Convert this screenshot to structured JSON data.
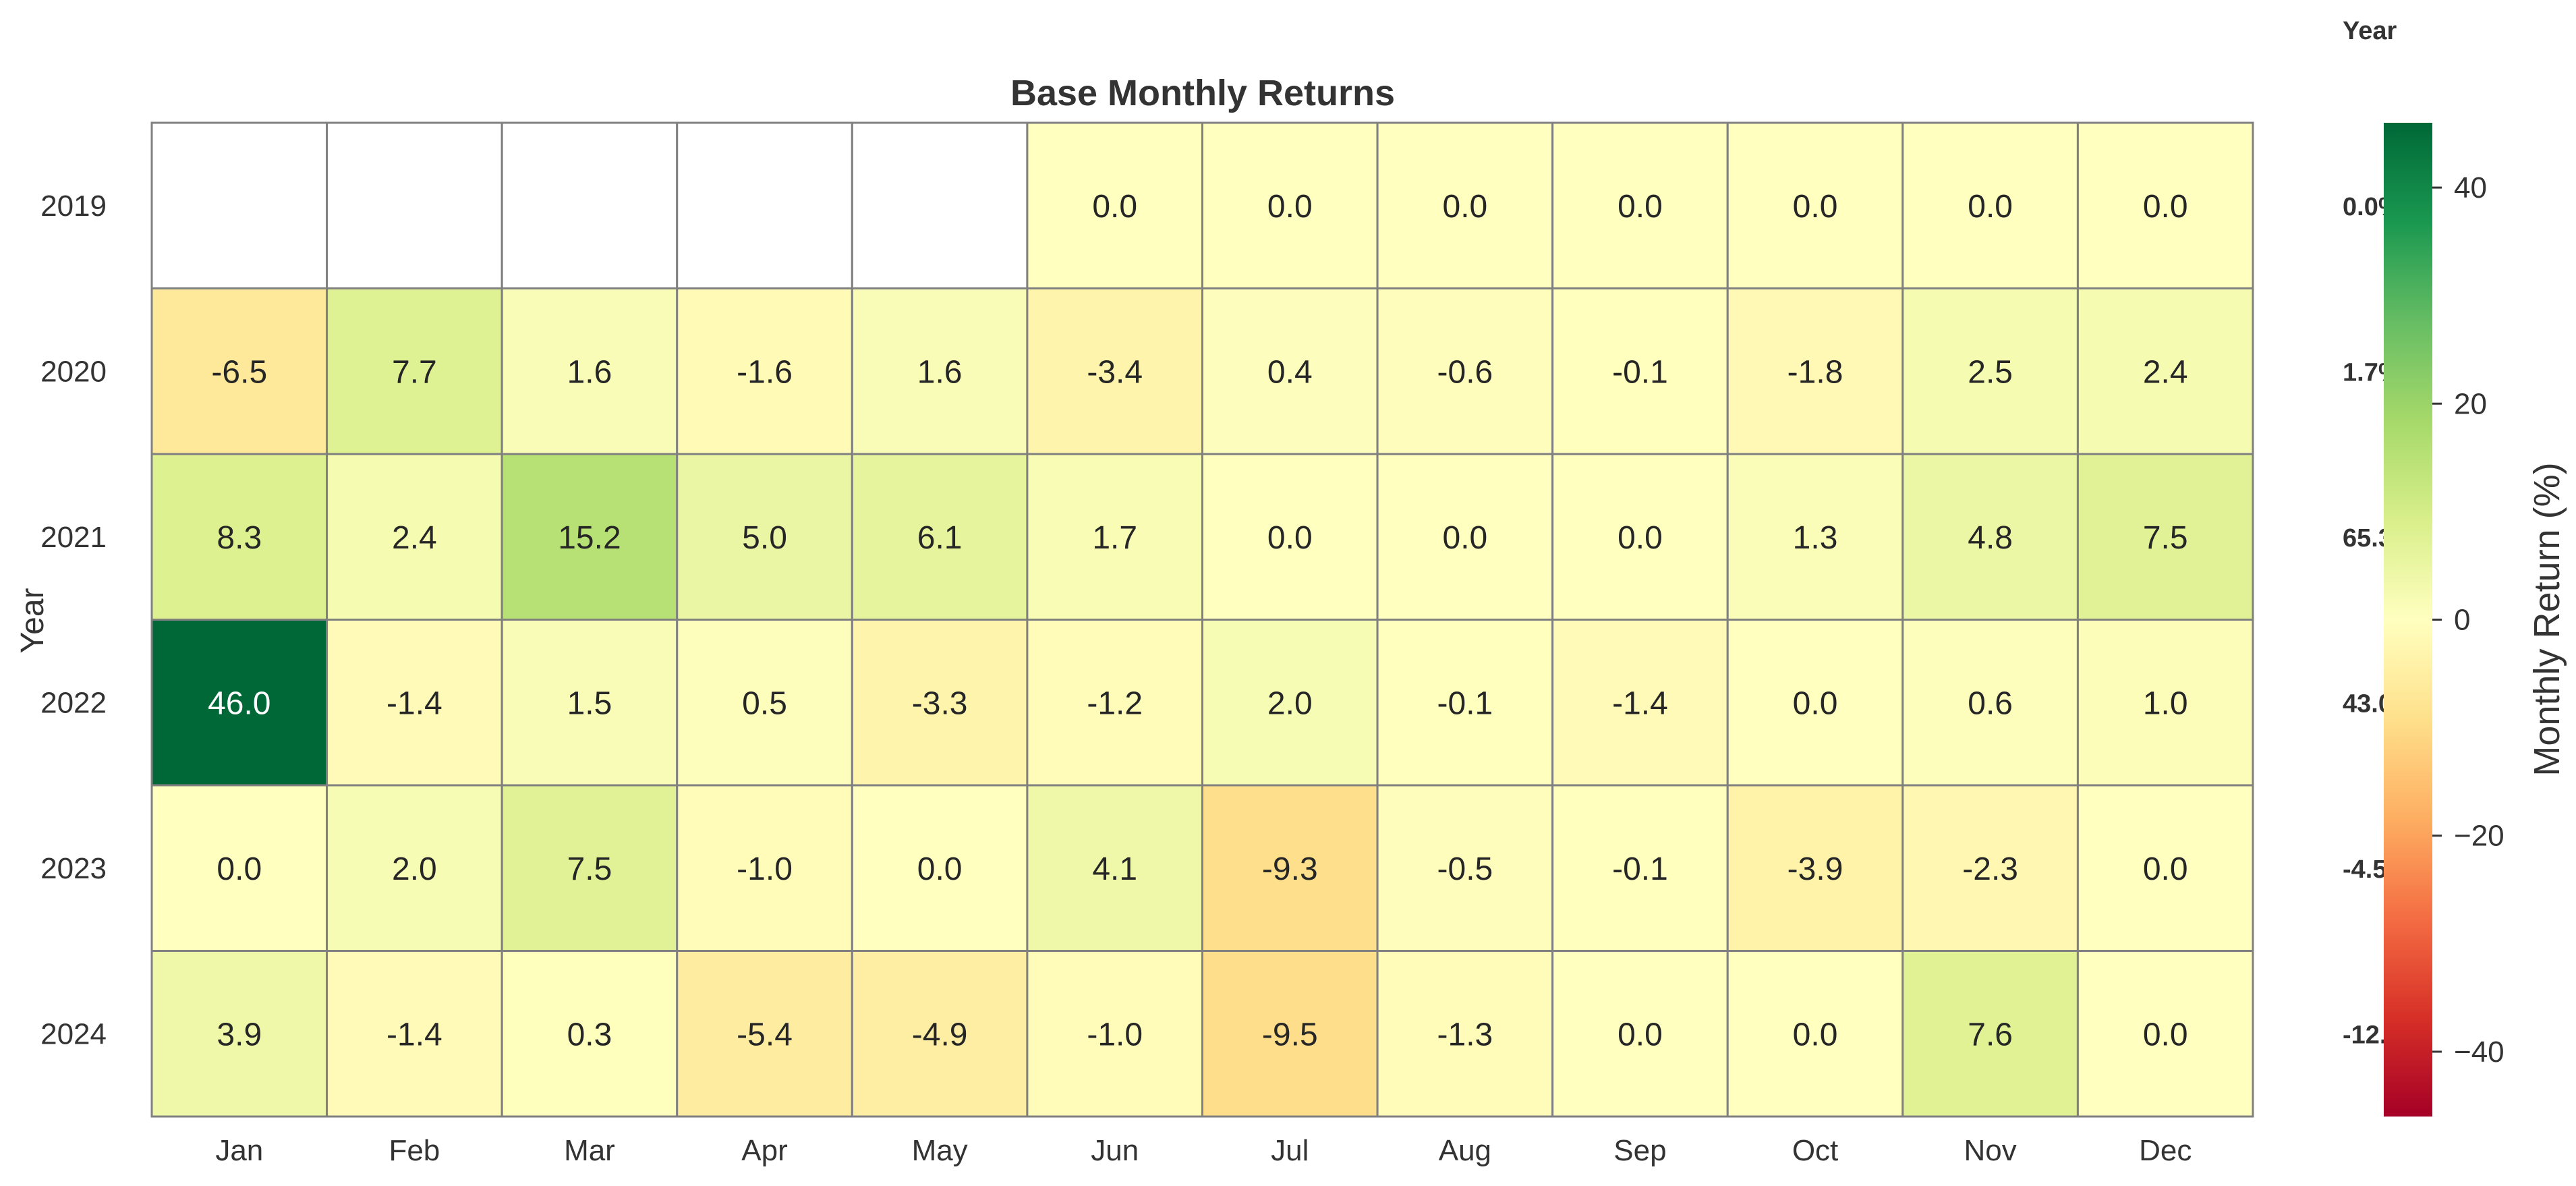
{
  "chart_data": {
    "type": "heatmap",
    "title": "Base Monthly Returns",
    "xlabel": "",
    "ylabel": "Year",
    "categories": [
      "Jan",
      "Feb",
      "Mar",
      "Apr",
      "May",
      "Jun",
      "Jul",
      "Aug",
      "Sep",
      "Oct",
      "Nov",
      "Dec"
    ],
    "rows": [
      "2019",
      "2020",
      "2021",
      "2022",
      "2023",
      "2024"
    ],
    "values": [
      [
        null,
        null,
        null,
        null,
        null,
        0.0,
        0.0,
        0.0,
        0.0,
        0.0,
        0.0,
        0.0
      ],
      [
        -6.5,
        7.7,
        1.6,
        -1.6,
        1.6,
        -3.4,
        0.4,
        -0.6,
        -0.1,
        -1.8,
        2.5,
        2.4
      ],
      [
        8.3,
        2.4,
        15.2,
        5.0,
        6.1,
        1.7,
        0.0,
        0.0,
        0.0,
        1.3,
        4.8,
        7.5
      ],
      [
        46.0,
        -1.4,
        1.5,
        0.5,
        -3.3,
        -1.2,
        2.0,
        -0.1,
        -1.4,
        0.0,
        0.6,
        1.0
      ],
      [
        0.0,
        2.0,
        7.5,
        -1.0,
        0.0,
        4.1,
        -9.3,
        -0.5,
        -0.1,
        -3.9,
        -2.3,
        0.0
      ],
      [
        3.9,
        -1.4,
        0.3,
        -5.4,
        -4.9,
        -1.0,
        -9.5,
        -1.3,
        0.0,
        0.0,
        7.6,
        0.0
      ]
    ],
    "cell_labels": [
      [
        "",
        "",
        "",
        "",
        "",
        "0.0",
        "0.0",
        "0.0",
        "0.0",
        "0.0",
        "0.0",
        "0.0"
      ],
      [
        "-6.5",
        "7.7",
        "1.6",
        "-1.6",
        "1.6",
        "-3.4",
        "0.4",
        "-0.6",
        "-0.1",
        "-1.8",
        "2.5",
        "2.4"
      ],
      [
        "8.3",
        "2.4",
        "15.2",
        "5.0",
        "6.1",
        "1.7",
        "0.0",
        "0.0",
        "0.0",
        "1.3",
        "4.8",
        "7.5"
      ],
      [
        "46.0",
        "-1.4",
        "1.5",
        "0.5",
        "-3.3",
        "-1.2",
        "2.0",
        "-0.1",
        "-1.4",
        "0.0",
        "0.6",
        "1.0"
      ],
      [
        "0.0",
        "2.0",
        "7.5",
        "-1.0",
        "0.0",
        "4.1",
        "-9.3",
        "-0.5",
        "-0.1",
        "-3.9",
        "-2.3",
        "0.0"
      ],
      [
        "3.9",
        "-1.4",
        "0.3",
        "-5.4",
        "-4.9",
        "-1.0",
        "-9.5",
        "-1.3",
        "0.0",
        "0.0",
        "7.6",
        "0.0"
      ]
    ],
    "colormap": "RdYlGn",
    "vlim": [
      -46,
      46
    ],
    "colorbar": {
      "label": "Monthly Return (%)",
      "ticks": [
        40,
        20,
        0,
        -20,
        -40
      ],
      "tick_labels": [
        "40",
        "20",
        "0",
        "−20",
        "−40"
      ]
    },
    "year_totals": {
      "header": "Year",
      "labels": [
        "0.0%",
        "1.7%",
        "65.3",
        "43.0",
        "-4.5",
        "-12."
      ]
    },
    "grid_color": "#808080"
  }
}
